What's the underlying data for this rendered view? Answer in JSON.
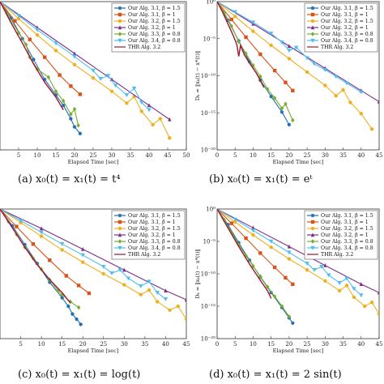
{
  "chart_data": [
    {
      "type": "line",
      "caption": "(a)  x₀(t) = x₁(t) = t⁴",
      "xlabel": "Elapsed Time [sec]",
      "ylabel": "",
      "log_y": true,
      "xlim": [
        0,
        50
      ],
      "xticks": [
        "5",
        "10",
        "15",
        "20",
        "25",
        "30",
        "35",
        "40",
        "45",
        "50"
      ],
      "ylim_exp": [
        -20,
        0
      ],
      "yticks": [],
      "legend_position": "top-right",
      "series": [
        {
          "name": "Our Alg. 3.1, β = 1.5",
          "color": "#1f6fb5",
          "marker": "star",
          "x": [
            0,
            3,
            6,
            9,
            12,
            15,
            17,
            19,
            20,
            21.5
          ],
          "y": [
            0,
            -2.2,
            -5,
            -7.8,
            -10.5,
            -12.6,
            -14,
            -15.8,
            -16.9,
            -17.8
          ]
        },
        {
          "name": "Our Alg. 3.1, β = 1",
          "color": "#d95319",
          "marker": "square",
          "x": [
            0,
            4,
            8,
            12,
            16,
            19,
            21.5
          ],
          "y": [
            0,
            -2.6,
            -5.1,
            -7.5,
            -9.9,
            -11.4,
            -12.5
          ]
        },
        {
          "name": "Our Alg. 3.2, β = 1.5",
          "color": "#edb120",
          "marker": "circle",
          "x": [
            0,
            5,
            10,
            15,
            20,
            25,
            30,
            34,
            36,
            38,
            41,
            43,
            45.5
          ],
          "y": [
            0,
            -2.3,
            -4.5,
            -6.6,
            -8.5,
            -10.3,
            -12.1,
            -13.7,
            -12.8,
            -14.8,
            -16.6,
            -15.8,
            -18.4
          ]
        },
        {
          "name": "Our Alg. 3.2, β = 1",
          "color": "#7e2f8e",
          "marker": "triangle",
          "x": [
            0,
            10,
            20,
            30,
            40,
            45.5
          ],
          "y": [
            0,
            -3.5,
            -7,
            -10.5,
            -14,
            -15.9
          ]
        },
        {
          "name": "Our Alg. 3.3, β = 0.8",
          "color": "#77ac30",
          "marker": "diamond",
          "x": [
            0,
            2,
            5,
            7,
            8,
            10,
            13,
            15,
            17,
            19,
            20,
            21
          ],
          "y": [
            0,
            -1.7,
            -4.2,
            -5.8,
            -7.5,
            -9.1,
            -10.2,
            -12.1,
            -13.4,
            -15.2,
            -14.5,
            -16.7
          ]
        },
        {
          "name": "Our Alg. 3.4, β = 0.8",
          "color": "#4dbeee",
          "marker": "tri-down",
          "x": [
            0,
            5,
            10,
            15,
            20,
            25,
            27,
            29,
            31,
            34,
            36,
            38,
            40
          ],
          "y": [
            0,
            -1.9,
            -3.8,
            -5.6,
            -7.4,
            -9.3,
            -10.4,
            -10.0,
            -11.3,
            -12.6,
            -11.7,
            -13.6,
            -14.6
          ]
        },
        {
          "name": "THR Alg. 3.2",
          "color": "#a2142f",
          "marker": "none",
          "x": [
            0,
            3,
            6,
            9,
            12,
            15,
            17
          ],
          "y": [
            0,
            -2.9,
            -5.6,
            -8.4,
            -10.9,
            -12.9,
            -14.6
          ]
        }
      ]
    },
    {
      "type": "line",
      "caption": "(b)  x₀(t) = x₁(t) = eᵗ",
      "xlabel": "Elapsed Time [sec]",
      "ylabel": "Dₖ = ‖xₖ(t) − x*(t)‖",
      "log_y": true,
      "xlim": [
        0,
        45
      ],
      "xticks": [
        "0",
        "5",
        "10",
        "15",
        "20",
        "25",
        "30",
        "35",
        "40",
        "45"
      ],
      "ylim_exp": [
        -20,
        0
      ],
      "yticks": [
        "10⁰",
        "10⁻⁵",
        "10⁻¹⁰",
        "10⁻¹⁵",
        "10⁻²⁰"
      ],
      "legend_position": "top-right",
      "series": [
        {
          "name": "Our Alg. 3.1, β = 1.5",
          "color": "#1f6fb5",
          "marker": "star",
          "x": [
            0,
            3,
            6,
            9,
            12,
            15,
            18,
            20
          ],
          "y": [
            0,
            -2.5,
            -5.3,
            -8.1,
            -10.6,
            -12.8,
            -14.9,
            -16.6
          ]
        },
        {
          "name": "Our Alg. 3.1, β = 1",
          "color": "#d95319",
          "marker": "square",
          "x": [
            0,
            4,
            8,
            12,
            16,
            19,
            21
          ],
          "y": [
            0,
            -2.4,
            -4.8,
            -7.1,
            -9.3,
            -10.9,
            -12.0
          ]
        },
        {
          "name": "Our Alg. 3.2, β = 1.5",
          "color": "#edb120",
          "marker": "circle",
          "x": [
            0,
            5,
            10,
            15,
            20,
            25,
            30,
            33,
            35,
            37,
            40,
            43
          ],
          "y": [
            0,
            -2.0,
            -4.0,
            -5.9,
            -7.7,
            -9.5,
            -11.3,
            -12.7,
            -11.9,
            -13.6,
            -15.1,
            -17.2
          ]
        },
        {
          "name": "Our Alg. 3.2, β = 1",
          "color": "#7e2f8e",
          "marker": "triangle",
          "x": [
            0,
            10,
            20,
            30,
            40,
            45
          ],
          "y": [
            0,
            -3.0,
            -6.0,
            -9.0,
            -12.0,
            -13.5
          ]
        },
        {
          "name": "Our Alg. 3.3, β = 0.8",
          "color": "#77ac30",
          "marker": "diamond",
          "x": [
            0,
            2,
            4,
            6,
            8,
            10,
            12,
            14,
            16,
            18,
            19,
            21
          ],
          "y": [
            0,
            -1.5,
            -3.3,
            -5.4,
            -7.0,
            -8.6,
            -10.1,
            -11.8,
            -13.0,
            -14.4,
            -13.8,
            -16.0
          ]
        },
        {
          "name": "Our Alg. 3.4, β = 0.8",
          "color": "#4dbeee",
          "marker": "tri-down",
          "x": [
            0,
            5,
            10,
            15,
            18,
            20,
            22,
            25,
            27,
            30,
            33,
            36,
            40
          ],
          "y": [
            0,
            -1.4,
            -2.8,
            -4.3,
            -5.5,
            -6.6,
            -6.2,
            -7.6,
            -8.4,
            -9.2,
            -10.1,
            -11.0,
            -12.2
          ]
        },
        {
          "name": "THR Alg. 3.2",
          "color": "#a2142f",
          "marker": "none",
          "x": [
            0,
            1.5,
            3,
            4.5,
            5.5,
            6,
            6.5,
            7.5,
            9,
            11,
            13
          ],
          "y": [
            0,
            -1.4,
            -3.0,
            -4.6,
            -5.8,
            -7.4,
            -5.9,
            -7.1,
            -8.3,
            -9.7,
            -11.6
          ]
        }
      ]
    },
    {
      "type": "line",
      "caption": "(c)  x₀(t) = x₁(t) = log(t)",
      "xlabel": "Elapsed Time [sec]",
      "ylabel": "",
      "log_y": true,
      "xlim": [
        0,
        45
      ],
      "xticks": [
        "5",
        "10",
        "15",
        "20",
        "25",
        "30",
        "35",
        "40",
        "45"
      ],
      "ylim_exp": [
        -20,
        0
      ],
      "yticks": [],
      "legend_position": "top-right",
      "series": [
        {
          "name": "Our Alg. 3.1, β = 1.5",
          "color": "#1f6fb5",
          "marker": "star",
          "x": [
            0,
            3,
            6,
            9,
            12,
            15,
            16.5,
            17.5,
            18.5,
            19.5
          ],
          "y": [
            0,
            -2.6,
            -5.5,
            -8.4,
            -11.3,
            -13.7,
            -15.0,
            -16.2,
            -17.0,
            -17.8
          ]
        },
        {
          "name": "Our Alg. 3.1, β = 1",
          "color": "#d95319",
          "marker": "square",
          "x": [
            0,
            4,
            8,
            12,
            16,
            19,
            21.5
          ],
          "y": [
            0,
            -2.7,
            -5.4,
            -7.9,
            -10.3,
            -11.8,
            -13.0
          ]
        },
        {
          "name": "Our Alg. 3.2, β = 1.5",
          "color": "#edb120",
          "marker": "circle",
          "x": [
            0,
            5,
            10,
            15,
            20,
            25,
            30,
            34,
            36,
            38,
            41,
            43,
            45
          ],
          "y": [
            0,
            -2.1,
            -4.2,
            -6.3,
            -8.2,
            -10.0,
            -11.7,
            -13.2,
            -12.5,
            -14.3,
            -15.6,
            -15.0,
            -17.0
          ]
        },
        {
          "name": "Our Alg. 3.2, β = 1",
          "color": "#7e2f8e",
          "marker": "triangle",
          "x": [
            0,
            10,
            20,
            30,
            40,
            45
          ],
          "y": [
            0,
            -3.0,
            -6.2,
            -9.4,
            -12.6,
            -14.0
          ]
        },
        {
          "name": "Our Alg. 3.3, β = 0.8",
          "color": "#77ac30",
          "marker": "diamond",
          "x": [
            0,
            2,
            4,
            6,
            8,
            10,
            12,
            14,
            15,
            17,
            19
          ],
          "y": [
            0,
            -1.9,
            -3.9,
            -5.9,
            -7.6,
            -9.3,
            -10.9,
            -12.6,
            -13.2,
            -14.3,
            -15.2
          ]
        },
        {
          "name": "Our Alg. 3.4, β = 0.8",
          "color": "#4dbeee",
          "marker": "tri-down",
          "x": [
            0,
            5,
            10,
            15,
            20,
            25,
            27,
            29,
            31,
            34,
            36,
            38,
            40
          ],
          "y": [
            0,
            -1.8,
            -3.6,
            -5.4,
            -7.1,
            -8.9,
            -9.9,
            -9.4,
            -10.7,
            -11.9,
            -11.2,
            -12.9,
            -13.9
          ]
        },
        {
          "name": "THR Alg. 3.2",
          "color": "#a2142f",
          "marker": "none",
          "x": [
            0,
            3,
            6,
            9,
            12,
            15,
            17
          ],
          "y": [
            0,
            -2.9,
            -5.9,
            -8.6,
            -10.9,
            -12.9,
            -14.5
          ]
        }
      ]
    },
    {
      "type": "line",
      "caption": "(d)  x₀(t) = x₁(t) = 2 sin(t)",
      "xlabel": "Elapsed Time [sec]",
      "ylabel": "Dₖ = ‖xₖ(t) − x*(t)‖",
      "log_y": true,
      "xlim": [
        0,
        45
      ],
      "xticks": [
        "0",
        "5",
        "10",
        "15",
        "20",
        "25",
        "30",
        "35",
        "40",
        "45"
      ],
      "ylim_exp": [
        -20,
        0
      ],
      "yticks": [
        "10⁰",
        "10⁻⁵",
        "10⁻¹⁰",
        "10⁻¹⁵",
        "10⁻²⁰"
      ],
      "legend_position": "top-right",
      "series": [
        {
          "name": "Our Alg. 3.1, β = 1.5",
          "color": "#1f6fb5",
          "marker": "star",
          "x": [
            0,
            3,
            6,
            9,
            12,
            15,
            18,
            20,
            21
          ],
          "y": [
            0,
            -2.4,
            -5.2,
            -7.9,
            -10.5,
            -12.9,
            -15.2,
            -16.8,
            -17.6
          ]
        },
        {
          "name": "Our Alg. 3.1, β = 1",
          "color": "#d95319",
          "marker": "square",
          "x": [
            0,
            4,
            8,
            12,
            16,
            19,
            21
          ],
          "y": [
            0,
            -2.2,
            -4.5,
            -6.8,
            -9.0,
            -10.6,
            -11.6
          ]
        },
        {
          "name": "Our Alg. 3.2, β = 1.5",
          "color": "#edb120",
          "marker": "circle",
          "x": [
            0,
            5,
            10,
            15,
            20,
            25,
            30,
            34,
            36,
            38,
            41,
            43,
            45
          ],
          "y": [
            0,
            -2.0,
            -4.0,
            -5.9,
            -7.7,
            -9.4,
            -11.1,
            -12.6,
            -11.8,
            -13.6,
            -15.0,
            -14.4,
            -16.2
          ]
        },
        {
          "name": "Our Alg. 3.2, β = 1",
          "color": "#7e2f8e",
          "marker": "triangle",
          "x": [
            0,
            10,
            20,
            30,
            40,
            45
          ],
          "y": [
            0,
            -2.9,
            -5.8,
            -8.7,
            -11.6,
            -12.9
          ]
        },
        {
          "name": "Our Alg. 3.3, β = 0.8",
          "color": "#77ac30",
          "marker": "diamond",
          "x": [
            0,
            2,
            4,
            6,
            8,
            10,
            12,
            14,
            16,
            18,
            20
          ],
          "y": [
            0,
            -1.7,
            -3.6,
            -5.5,
            -7.2,
            -8.8,
            -10.4,
            -12.0,
            -13.5,
            -15.0,
            -16.6
          ]
        },
        {
          "name": "Our Alg. 3.4, β = 0.8",
          "color": "#4dbeee",
          "marker": "tri-down",
          "x": [
            0,
            5,
            10,
            15,
            20,
            25,
            27,
            29,
            31,
            34,
            36,
            38,
            40
          ],
          "y": [
            0,
            -1.6,
            -3.3,
            -5.0,
            -6.7,
            -8.4,
            -9.4,
            -8.9,
            -10.2,
            -11.4,
            -10.7,
            -12.3,
            -13.3
          ]
        },
        {
          "name": "THR Alg. 3.2",
          "color": "#a2142f",
          "marker": "none",
          "x": [
            0,
            3,
            6,
            9,
            12,
            14,
            15
          ],
          "y": [
            0,
            -2.9,
            -5.8,
            -8.5,
            -11.0,
            -12.6,
            -13.8
          ]
        }
      ]
    }
  ]
}
